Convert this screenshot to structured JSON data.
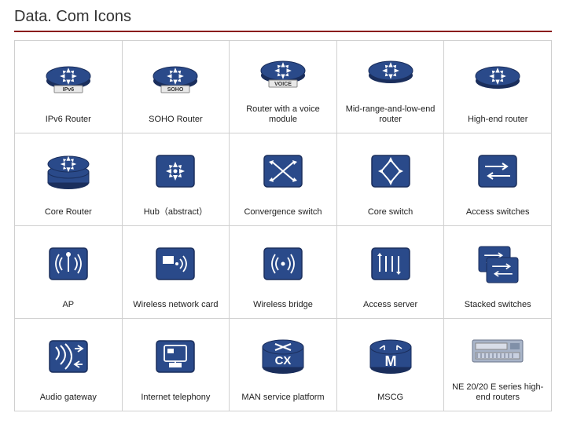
{
  "title": "Data. Com Icons",
  "colors": {
    "accent_rule": "#8a1c1c",
    "icon_fill": "#2a4a8a",
    "icon_stroke": "#1a2e5c",
    "icon_arrow": "#ffffff",
    "cell_border": "#d0d0d0",
    "text": "#222222",
    "bg": "#ffffff"
  },
  "typography": {
    "title_fontsize_pt": 15,
    "label_fontsize_pt": 8
  },
  "grid": {
    "rows": 4,
    "cols": 5
  },
  "cells": [
    [
      {
        "label": "IPv6 Router",
        "icon": "router-disc",
        "sub": "IPv6"
      },
      {
        "label": "SOHO Router",
        "icon": "router-disc",
        "sub": "SOHO"
      },
      {
        "label": "Router with a voice module",
        "icon": "router-disc",
        "sub": "VOICE"
      },
      {
        "label": "Mid-range-and-low-end router",
        "icon": "router-disc",
        "sub": ""
      },
      {
        "label": "High-end router",
        "icon": "router-disc",
        "sub": ""
      }
    ],
    [
      {
        "label": "Core Router",
        "icon": "core-stack"
      },
      {
        "label": "Hub（abstract）",
        "icon": "hub-box"
      },
      {
        "label": "Convergence switch",
        "icon": "switch-box-x"
      },
      {
        "label": "Core switch",
        "icon": "switch-box-diamond"
      },
      {
        "label": "Access switches",
        "icon": "switch-box-pair"
      }
    ],
    [
      {
        "label": "AP",
        "icon": "ap-antenna"
      },
      {
        "label": "Wireless network card",
        "icon": "nic-card"
      },
      {
        "label": "Wireless bridge",
        "icon": "bridge-box"
      },
      {
        "label": "Access server",
        "icon": "server-lines"
      },
      {
        "label": "Stacked switches",
        "icon": "stacked-switches"
      }
    ],
    [
      {
        "label": "Audio gateway",
        "icon": "audio-box"
      },
      {
        "label": "Internet telephony",
        "icon": "iphone-box"
      },
      {
        "label": "MAN service platform",
        "icon": "cx-cylinder"
      },
      {
        "label": "MSCG",
        "icon": "m-cylinder"
      },
      {
        "label": "NE 20/20 E series high-end routers",
        "icon": "ne-rack"
      }
    ]
  ]
}
